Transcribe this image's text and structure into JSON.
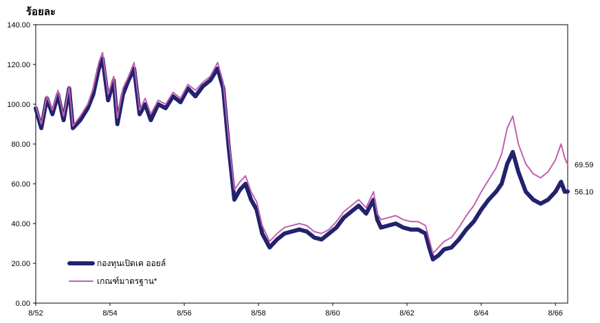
{
  "chart_data": {
    "type": "line",
    "title": "",
    "ylabel": "ร้อยละ",
    "xlabel": "",
    "ylim": [
      0,
      140
    ],
    "yticks": [
      "0.00",
      "20.00",
      "40.00",
      "60.00",
      "80.00",
      "100.00",
      "120.00",
      "140.00"
    ],
    "xlim": [
      2552.0,
      2566.33
    ],
    "xticks": [
      {
        "label": "8/52",
        "value": 2552
      },
      {
        "label": "8/54",
        "value": 2554
      },
      {
        "label": "8/56",
        "value": 2556
      },
      {
        "label": "8/58",
        "value": 2558
      },
      {
        "label": "8/60",
        "value": 2560
      },
      {
        "label": "8/62",
        "value": 2562
      },
      {
        "label": "8/64",
        "value": 2564
      },
      {
        "label": "8/66",
        "value": 2566
      }
    ],
    "grid": false,
    "legend_position": "bottom-left",
    "series": [
      {
        "name": "กองทุนเปิดเค ออยล์",
        "color": "#22226e",
        "end_label": "56.10",
        "x": [
          2552.0,
          2552.15,
          2552.3,
          2552.45,
          2552.6,
          2552.75,
          2552.9,
          2553.0,
          2553.2,
          2553.4,
          2553.55,
          2553.7,
          2553.8,
          2553.95,
          2554.1,
          2554.2,
          2554.35,
          2554.5,
          2554.65,
          2554.8,
          2554.95,
          2555.1,
          2555.3,
          2555.5,
          2555.7,
          2555.9,
          2556.1,
          2556.3,
          2556.5,
          2556.7,
          2556.9,
          2557.05,
          2557.2,
          2557.35,
          2557.5,
          2557.65,
          2557.8,
          2557.95,
          2558.1,
          2558.3,
          2558.5,
          2558.7,
          2558.9,
          2559.1,
          2559.3,
          2559.5,
          2559.7,
          2559.9,
          2560.1,
          2560.3,
          2560.5,
          2560.7,
          2560.9,
          2561.1,
          2561.2,
          2561.3,
          2561.5,
          2561.7,
          2561.9,
          2562.1,
          2562.3,
          2562.5,
          2562.6,
          2562.7,
          2562.85,
          2563.0,
          2563.2,
          2563.4,
          2563.6,
          2563.8,
          2564.0,
          2564.2,
          2564.4,
          2564.55,
          2564.7,
          2564.85,
          2565.0,
          2565.2,
          2565.4,
          2565.6,
          2565.8,
          2566.0,
          2566.15,
          2566.25,
          2566.33
        ],
        "y": [
          98,
          88,
          103,
          95,
          105,
          92,
          108,
          88,
          92,
          98,
          105,
          118,
          123,
          102,
          112,
          90,
          105,
          112,
          118,
          95,
          100,
          92,
          100,
          98,
          104,
          101,
          108,
          104,
          109,
          112,
          118,
          108,
          78,
          52,
          57,
          60,
          52,
          47,
          35,
          28,
          32,
          35,
          36,
          37,
          36,
          33,
          32,
          35,
          38,
          43,
          46,
          49,
          45,
          52,
          42,
          38,
          39,
          40,
          38,
          37,
          37,
          35,
          28,
          22,
          24,
          27,
          28,
          32,
          37,
          41,
          47,
          52,
          56,
          60,
          70,
          76,
          66,
          56,
          52,
          50,
          52,
          56,
          61,
          56,
          56.1
        ]
      },
      {
        "name": "เกณฑ์มาตรฐาน*",
        "color": "#c060b0",
        "end_label": "69.59",
        "x": [
          2552.0,
          2552.15,
          2552.3,
          2552.45,
          2552.6,
          2552.75,
          2552.9,
          2553.0,
          2553.2,
          2553.4,
          2553.55,
          2553.7,
          2553.8,
          2553.95,
          2554.1,
          2554.2,
          2554.35,
          2554.5,
          2554.65,
          2554.8,
          2554.95,
          2555.1,
          2555.3,
          2555.5,
          2555.7,
          2555.9,
          2556.1,
          2556.3,
          2556.5,
          2556.7,
          2556.9,
          2557.05,
          2557.2,
          2557.35,
          2557.5,
          2557.65,
          2557.8,
          2557.95,
          2558.1,
          2558.3,
          2558.5,
          2558.7,
          2558.9,
          2559.1,
          2559.3,
          2559.5,
          2559.7,
          2559.9,
          2560.1,
          2560.3,
          2560.5,
          2560.7,
          2560.9,
          2561.1,
          2561.2,
          2561.3,
          2561.5,
          2561.7,
          2561.9,
          2562.1,
          2562.3,
          2562.5,
          2562.6,
          2562.7,
          2562.85,
          2563.0,
          2563.2,
          2563.4,
          2563.6,
          2563.8,
          2564.0,
          2564.2,
          2564.4,
          2564.55,
          2564.7,
          2564.85,
          2565.0,
          2565.2,
          2565.4,
          2565.6,
          2565.8,
          2566.0,
          2566.15,
          2566.25,
          2566.33
        ],
        "y": [
          99,
          90,
          104,
          97,
          107,
          94,
          109,
          89,
          94,
          100,
          108,
          121,
          126,
          105,
          114,
          93,
          108,
          114,
          121,
          97,
          103,
          95,
          102,
          100,
          106,
          103,
          110,
          107,
          111,
          114,
          121,
          111,
          82,
          57,
          61,
          64,
          56,
          51,
          39,
          31,
          35,
          38,
          39,
          40,
          39,
          36,
          35,
          37,
          41,
          46,
          49,
          52,
          48,
          56,
          45,
          42,
          43,
          44,
          42,
          41,
          41,
          39,
          32,
          25,
          28,
          31,
          33,
          38,
          44,
          49,
          56,
          62,
          68,
          75,
          88,
          94,
          80,
          70,
          65,
          63,
          66,
          72,
          80,
          73,
          69.59
        ]
      }
    ]
  }
}
